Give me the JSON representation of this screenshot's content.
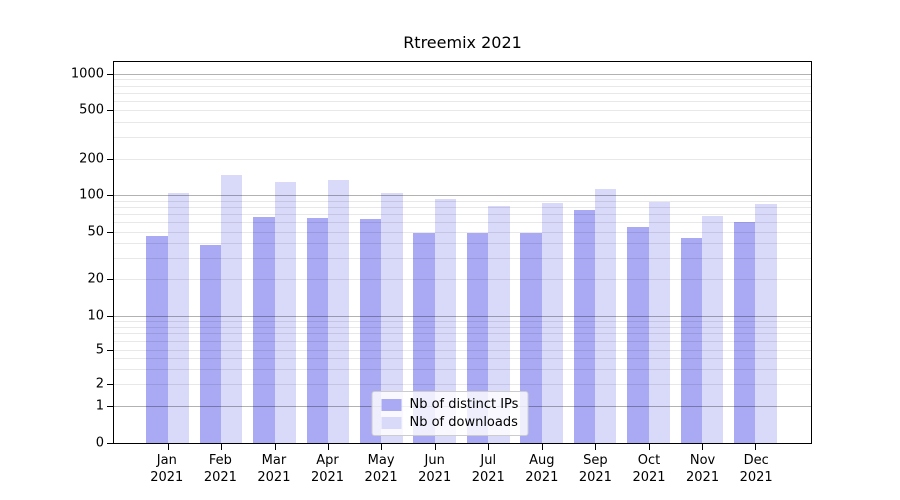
{
  "title": "Rtreemix 2021",
  "chart_data": {
    "type": "bar",
    "title": "Rtreemix 2021",
    "categories": [
      "Jan 2021",
      "Feb 2021",
      "Mar 2021",
      "Apr 2021",
      "May 2021",
      "Jun 2021",
      "Jul 2021",
      "Aug 2021",
      "Sep 2021",
      "Oct 2021",
      "Nov 2021",
      "Dec 2021"
    ],
    "series": [
      {
        "name": "Nb of distinct IPs",
        "color": "#a9a9f4",
        "values": [
          46,
          39,
          66,
          65,
          64,
          49,
          49,
          49,
          75,
          55,
          44,
          60
        ]
      },
      {
        "name": "Nb of downloads",
        "color": "#d9d9fa",
        "values": [
          104,
          146,
          128,
          135,
          104,
          93,
          81,
          87,
          113,
          88,
          67,
          84
        ]
      }
    ],
    "xlabel": "",
    "ylabel": "",
    "yscale": "symlog",
    "yticks": [
      0,
      1,
      2,
      5,
      10,
      20,
      50,
      100,
      200,
      500,
      1000
    ],
    "ylim": [
      0,
      1000
    ],
    "grid": "both",
    "legend_position": "lower center",
    "bar_width": 0.4
  },
  "colors": {
    "series_ips": "#a9a9f4",
    "series_downloads": "#d9d9fa",
    "grid_major": "#b3b3b3",
    "grid_minor": "#e9e9e9",
    "spine": "#000000",
    "background": "#ffffff",
    "legend_border": "#cccccc"
  }
}
